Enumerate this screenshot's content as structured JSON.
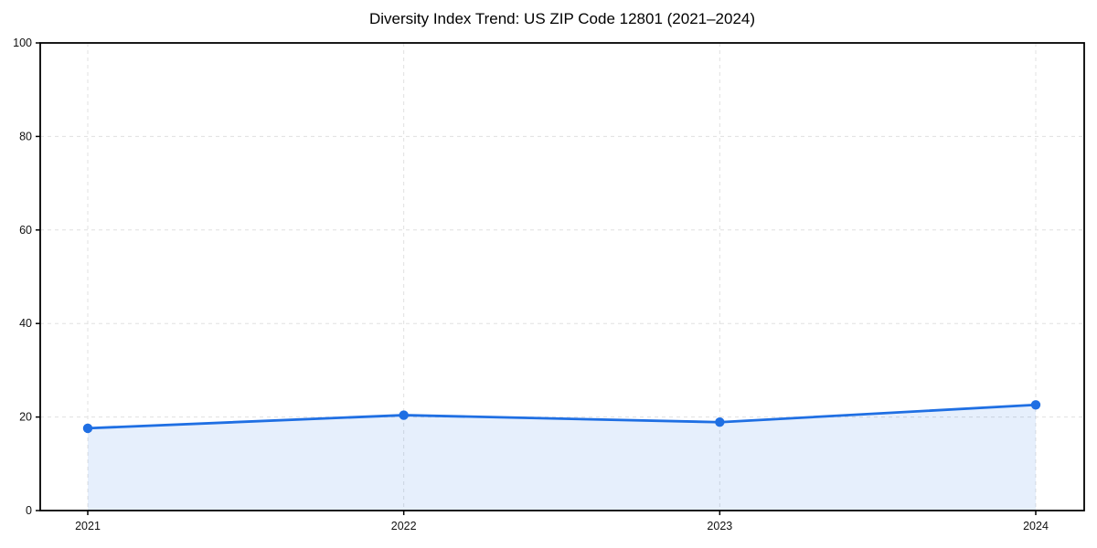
{
  "chart_data": {
    "type": "line",
    "title": "Diversity Index Trend: US ZIP Code 12801 (2021–2024)",
    "categories": [
      "2021",
      "2022",
      "2023",
      "2024"
    ],
    "series": [
      {
        "name": "Diversity Index",
        "values": [
          17.6,
          20.4,
          18.9,
          22.6
        ]
      }
    ],
    "xlabel": "",
    "ylabel": "",
    "ylim": [
      0,
      100
    ],
    "yticks": [
      0,
      20,
      40,
      60,
      80,
      100
    ],
    "grid": true,
    "grid_style": "dashed",
    "grid_color": "#e0e0e0",
    "legend_position": "none",
    "line_color": "#1f6fe3",
    "marker": "circle",
    "area_fill": true,
    "fill_color": "rgba(31,111,227,0.11)",
    "spine_color": "#000000",
    "background_color": "#ffffff"
  }
}
